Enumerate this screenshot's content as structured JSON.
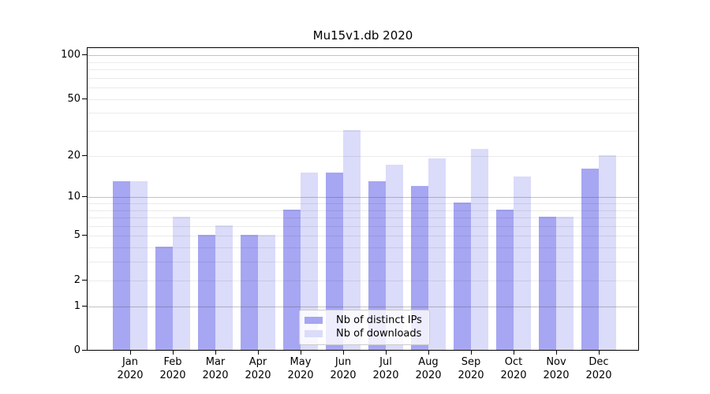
{
  "chart_data": {
    "type": "bar",
    "title": "Mu15v1.db 2020",
    "categories": [
      "Jan",
      "Feb",
      "Mar",
      "Apr",
      "May",
      "Jun",
      "Jul",
      "Aug",
      "Sep",
      "Oct",
      "Nov",
      "Dec"
    ],
    "year": "2020",
    "series": [
      {
        "name": "Nb of distinct IPs",
        "color": "#a6a6f2",
        "values": [
          13,
          4,
          5,
          5,
          8,
          15,
          13,
          12,
          9,
          8,
          7,
          16
        ]
      },
      {
        "name": "Nb of downloads",
        "color": "#dbdbfa",
        "values": [
          13,
          7,
          6,
          5,
          15,
          30,
          17,
          19,
          22,
          14,
          7,
          20
        ]
      }
    ],
    "xlabel": "",
    "ylabel": "",
    "yscale": "symlog",
    "ylim": [
      0,
      113
    ],
    "y_tick_labels": [
      100,
      50,
      20,
      10,
      5,
      2,
      1,
      0
    ],
    "major_grid_values": [
      1,
      10,
      100
    ],
    "minor_grid_values": [
      2,
      3,
      4,
      5,
      6,
      7,
      8,
      9,
      20,
      30,
      40,
      50,
      60,
      70,
      80,
      90
    ],
    "grid": "on",
    "legend_position": "lower center"
  }
}
